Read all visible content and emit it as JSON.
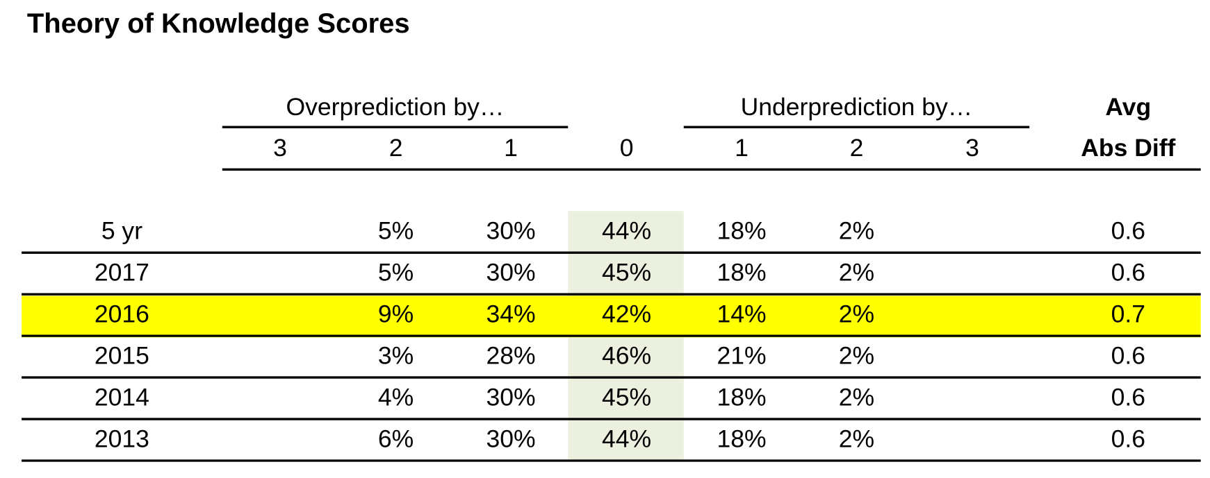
{
  "header": {
    "title": "Theory of Knowledge Scores"
  },
  "table": {
    "groups": [
      {
        "label": "Overprediction by…"
      },
      {
        "label": "Underprediction by…"
      }
    ],
    "columns": [
      "3",
      "2",
      "1",
      "0",
      "1",
      "2",
      "3"
    ],
    "avg_header": [
      "Avg",
      "Abs Diff"
    ],
    "zero_column_color": "#ebf1de",
    "highlight_color": "#ffff00",
    "rows": [
      {
        "label": "5 yr",
        "cells": [
          "5%",
          "30%",
          "44%",
          "18%",
          "2%"
        ],
        "avg": "0.6"
      },
      {
        "label": "2017",
        "cells": [
          "5%",
          "30%",
          "45%",
          "18%",
          "2%"
        ],
        "avg": "0.6"
      },
      {
        "label": "2016",
        "cells": [
          "9%",
          "34%",
          "42%",
          "14%",
          "2%"
        ],
        "avg": "0.7",
        "highlight": true
      },
      {
        "label": "2015",
        "cells": [
          "3%",
          "28%",
          "46%",
          "21%",
          "2%"
        ],
        "avg": "0.6"
      },
      {
        "label": "2014",
        "cells": [
          "4%",
          "30%",
          "45%",
          "18%",
          "2%"
        ],
        "avg": "0.6"
      },
      {
        "label": "2013",
        "cells": [
          "6%",
          "30%",
          "44%",
          "18%",
          "2%"
        ],
        "avg": "0.6"
      }
    ]
  }
}
